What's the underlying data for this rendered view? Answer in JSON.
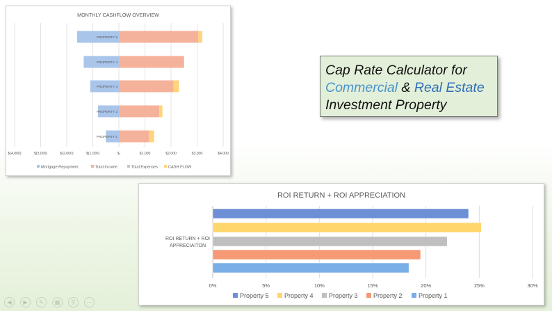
{
  "cashflow": {
    "title": "MONTHLY CASHFLOW OVERVIEW",
    "properties": [
      "PROPERTY 5",
      "PROPERTY 4",
      "PROPERTY 3",
      "PROPERTY 2",
      "PROPERTY 1"
    ],
    "x_ticks": [
      "$(4,000)",
      "$(3,000)",
      "$(2,000)",
      "$(1,000)",
      "$-",
      "$1,000",
      "$2,000",
      "$3,000",
      "$4,000"
    ],
    "legend": [
      "Mortgage Repayment",
      "Total Income",
      "Total Expenses",
      "CASH FLOW"
    ],
    "colors": {
      "mortgage": "#a9c5ea",
      "income": "#f5b29a",
      "expenses": "#c7c7c7",
      "cashflow": "#ffd47a"
    }
  },
  "title_card": {
    "line1": "Cap Rate Calculator for",
    "word_commercial": "Commercial",
    "amp": " & ",
    "word_realestate": "Real Estate",
    "line3": "Investment Property"
  },
  "roi": {
    "title": "ROI RETURN + ROI APPRECIATION",
    "category_line1": "ROI RETURN + ROI",
    "category_line2": "APPRECIAITON",
    "x_ticks": [
      "0%",
      "5%",
      "10%",
      "15%",
      "20%",
      "25%",
      "30%"
    ],
    "legend": [
      "Property 5",
      "Property 4",
      "Property 3",
      "Property 2",
      "Property 1"
    ]
  },
  "chart_data": [
    {
      "type": "bar",
      "title": "MONTHLY CASHFLOW OVERVIEW",
      "orientation": "horizontal-stacked",
      "categories": [
        "PROPERTY 5",
        "PROPERTY 4",
        "PROPERTY 3",
        "PROPERTY 2",
        "PROPERTY 1"
      ],
      "xlim": [
        -4000,
        4000
      ],
      "series": [
        {
          "name": "Mortgage Repayment",
          "color": "#a9c5ea",
          "values": [
            -1600,
            -1350,
            -1100,
            -800,
            -500
          ]
        },
        {
          "name": "Total Expenses",
          "color": "#c7c7c7",
          "values": [
            -1250,
            -1050,
            -800,
            -550,
            -350
          ]
        },
        {
          "name": "Total Income",
          "color": "#f5b29a",
          "values": [
            3050,
            2500,
            2100,
            1550,
            1150
          ]
        },
        {
          "name": "CASH FLOW",
          "color": "#ffd47a",
          "values": [
            150,
            0,
            200,
            120,
            200
          ]
        }
      ],
      "legend_position": "bottom",
      "grid": true
    },
    {
      "type": "bar",
      "title": "ROI RETURN + ROI APPRECIATION",
      "orientation": "horizontal",
      "categories": [
        "ROI RETURN + ROI APPRECIAITON"
      ],
      "xlim": [
        0,
        30
      ],
      "x_unit": "%",
      "series": [
        {
          "name": "Property 5",
          "color": "#6d8fd6",
          "value": 24
        },
        {
          "name": "Property 4",
          "color": "#ffd66b",
          "value": 25.2
        },
        {
          "name": "Property 3",
          "color": "#bfbfbf",
          "value": 22
        },
        {
          "name": "Property 2",
          "color": "#f59a74",
          "value": 19.5
        },
        {
          "name": "Property 1",
          "color": "#79aee6",
          "value": 18.4
        }
      ],
      "legend_position": "bottom",
      "grid": true
    }
  ]
}
